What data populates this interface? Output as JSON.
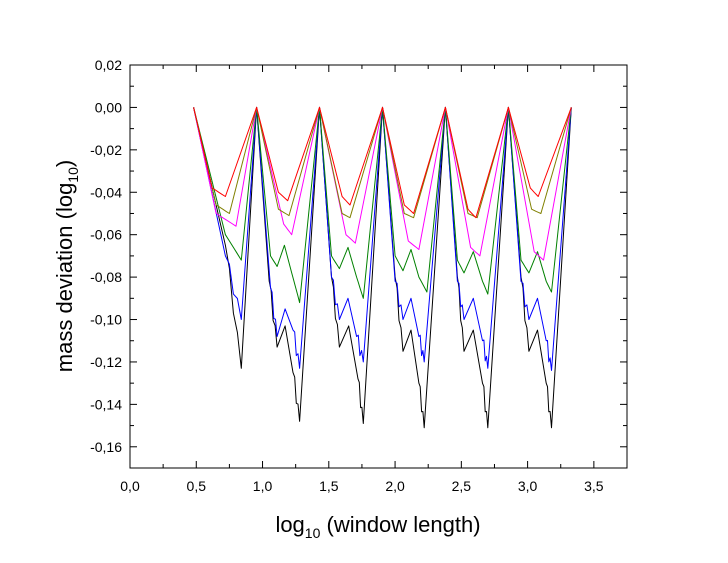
{
  "chart_data": {
    "type": "line",
    "title": "",
    "xlabel": {
      "prefix": "log",
      "sub": "10",
      "suffix": " (window length)"
    },
    "ylabel": {
      "prefix": "mass deviation (log",
      "sub": "10",
      "suffix": ")"
    },
    "xlim": [
      0.0,
      3.75
    ],
    "ylim": [
      -0.17,
      0.02
    ],
    "xticks": [
      0.0,
      0.5,
      1.0,
      1.5,
      2.0,
      2.5,
      3.0,
      3.5
    ],
    "xtick_labels": [
      "0,0",
      "0,5",
      "1,0",
      "1,5",
      "2,0",
      "2,5",
      "3,0",
      "3,5"
    ],
    "yticks": [
      0.02,
      0.0,
      -0.02,
      -0.04,
      -0.06,
      -0.08,
      -0.1,
      -0.12,
      -0.14,
      -0.16
    ],
    "ytick_labels": [
      "0,02",
      "0,00",
      "-0,02",
      "-0,04",
      "-0,06",
      "-0,08",
      "-0,10",
      "-0,12",
      "-0,14",
      "-0,16"
    ],
    "grid": false,
    "legend": "none",
    "peaks_x": [
      0.48,
      0.955,
      1.43,
      1.905,
      2.38,
      2.855,
      3.33
    ],
    "series": [
      {
        "color": "#000000",
        "minima": [
          {
            "a": 0.84,
            "v": -0.123,
            "sa": 0.72,
            "sv": -0.065
          },
          {
            "a": 1.11,
            "v": -0.113,
            "sa": 1.05,
            "sv": -0.082
          },
          {
            "a": 1.28,
            "v": -0.148,
            "sa": 1.23,
            "sv": -0.125
          },
          {
            "a": 1.58,
            "v": -0.113,
            "sa": 1.52,
            "sv": -0.08
          },
          {
            "a": 1.76,
            "v": -0.149,
            "sa": 1.72,
            "sv": -0.128
          },
          {
            "a": 2.06,
            "v": -0.115,
            "sa": 2.0,
            "sv": -0.08
          },
          {
            "a": 2.22,
            "v": -0.151,
            "sa": 2.18,
            "sv": -0.13
          },
          {
            "a": 2.52,
            "v": -0.115,
            "sa": 2.47,
            "sv": -0.08
          },
          {
            "a": 2.7,
            "v": -0.151,
            "sa": 2.66,
            "sv": -0.13
          },
          {
            "a": 3.01,
            "v": -0.115,
            "sa": 2.95,
            "sv": -0.08
          },
          {
            "a": 3.18,
            "v": -0.151,
            "sa": 3.14,
            "sv": -0.13
          }
        ]
      },
      {
        "color": "#0000ff",
        "minima": [
          {
            "a": 0.84,
            "v": -0.1,
            "sa": 0.72,
            "sv": -0.07
          },
          {
            "a": 1.11,
            "v": -0.108,
            "sa": 1.06,
            "sv": -0.085
          },
          {
            "a": 1.28,
            "v": -0.123,
            "sa": 1.23,
            "sv": -0.105
          },
          {
            "a": 1.58,
            "v": -0.1,
            "sa": 1.52,
            "sv": -0.08
          },
          {
            "a": 1.76,
            "v": -0.12,
            "sa": 1.71,
            "sv": -0.108
          },
          {
            "a": 2.06,
            "v": -0.1,
            "sa": 2.0,
            "sv": -0.082
          },
          {
            "a": 2.22,
            "v": -0.12,
            "sa": 2.18,
            "sv": -0.108
          },
          {
            "a": 2.52,
            "v": -0.1,
            "sa": 2.47,
            "sv": -0.082
          },
          {
            "a": 2.7,
            "v": -0.123,
            "sa": 2.66,
            "sv": -0.11
          },
          {
            "a": 3.01,
            "v": -0.1,
            "sa": 2.95,
            "sv": -0.082
          },
          {
            "a": 3.18,
            "v": -0.124,
            "sa": 3.14,
            "sv": -0.11
          }
        ]
      },
      {
        "color": "#008000",
        "minima": [
          {
            "a": 0.84,
            "v": -0.072,
            "sa": 0.72,
            "sv": -0.06
          },
          {
            "a": 1.11,
            "v": -0.075,
            "sa": 1.06,
            "sv": -0.07
          },
          {
            "a": 1.28,
            "v": -0.092,
            "sa": 1.22,
            "sv": -0.078
          },
          {
            "a": 1.58,
            "v": -0.076,
            "sa": 1.52,
            "sv": -0.07
          },
          {
            "a": 1.76,
            "v": -0.09,
            "sa": 1.71,
            "sv": -0.08
          },
          {
            "a": 2.06,
            "v": -0.077,
            "sa": 2.0,
            "sv": -0.07
          },
          {
            "a": 2.24,
            "v": -0.087,
            "sa": 2.18,
            "sv": -0.08
          },
          {
            "a": 2.52,
            "v": -0.078,
            "sa": 2.47,
            "sv": -0.072
          },
          {
            "a": 2.7,
            "v": -0.088,
            "sa": 2.66,
            "sv": -0.082
          },
          {
            "a": 3.01,
            "v": -0.078,
            "sa": 2.95,
            "sv": -0.072
          },
          {
            "a": 3.18,
            "v": -0.087,
            "sa": 3.14,
            "sv": -0.082
          }
        ]
      },
      {
        "color": "#ff00ff",
        "minima": [
          {
            "a": 0.8,
            "v": -0.056,
            "sa": 0.65,
            "sv": -0.05
          },
          {
            "a": 1.22,
            "v": -0.06,
            "sa": 1.16,
            "sv": -0.055
          },
          {
            "a": 1.7,
            "v": -0.064,
            "sa": 1.63,
            "sv": -0.06
          },
          {
            "a": 2.18,
            "v": -0.067,
            "sa": 2.1,
            "sv": -0.063
          },
          {
            "a": 2.64,
            "v": -0.07,
            "sa": 2.57,
            "sv": -0.066
          },
          {
            "a": 3.12,
            "v": -0.072,
            "sa": 3.05,
            "sv": -0.068
          }
        ]
      },
      {
        "color": "#808000",
        "minima": [
          {
            "a": 0.75,
            "v": -0.05,
            "sa": 0.65,
            "sv": -0.046
          },
          {
            "a": 1.2,
            "v": -0.051,
            "sa": 1.12,
            "sv": -0.048
          },
          {
            "a": 1.66,
            "v": -0.052,
            "sa": 1.6,
            "sv": -0.05
          },
          {
            "a": 2.14,
            "v": -0.052,
            "sa": 2.07,
            "sv": -0.05
          },
          {
            "a": 2.62,
            "v": -0.052,
            "sa": 2.55,
            "sv": -0.05
          },
          {
            "a": 3.1,
            "v": -0.05,
            "sa": 3.03,
            "sv": -0.048
          }
        ]
      },
      {
        "color": "#ff0000",
        "minima": [
          {
            "a": 0.72,
            "v": -0.042,
            "sa": 0.62,
            "sv": -0.038
          },
          {
            "a": 1.19,
            "v": -0.044,
            "sa": 1.12,
            "sv": -0.04
          },
          {
            "a": 1.66,
            "v": -0.046,
            "sa": 1.6,
            "sv": -0.042
          },
          {
            "a": 2.14,
            "v": -0.05,
            "sa": 2.07,
            "sv": -0.046
          },
          {
            "a": 2.61,
            "v": -0.052,
            "sa": 2.55,
            "sv": -0.048
          },
          {
            "a": 3.08,
            "v": -0.042,
            "sa": 3.02,
            "sv": -0.038
          }
        ]
      }
    ]
  }
}
